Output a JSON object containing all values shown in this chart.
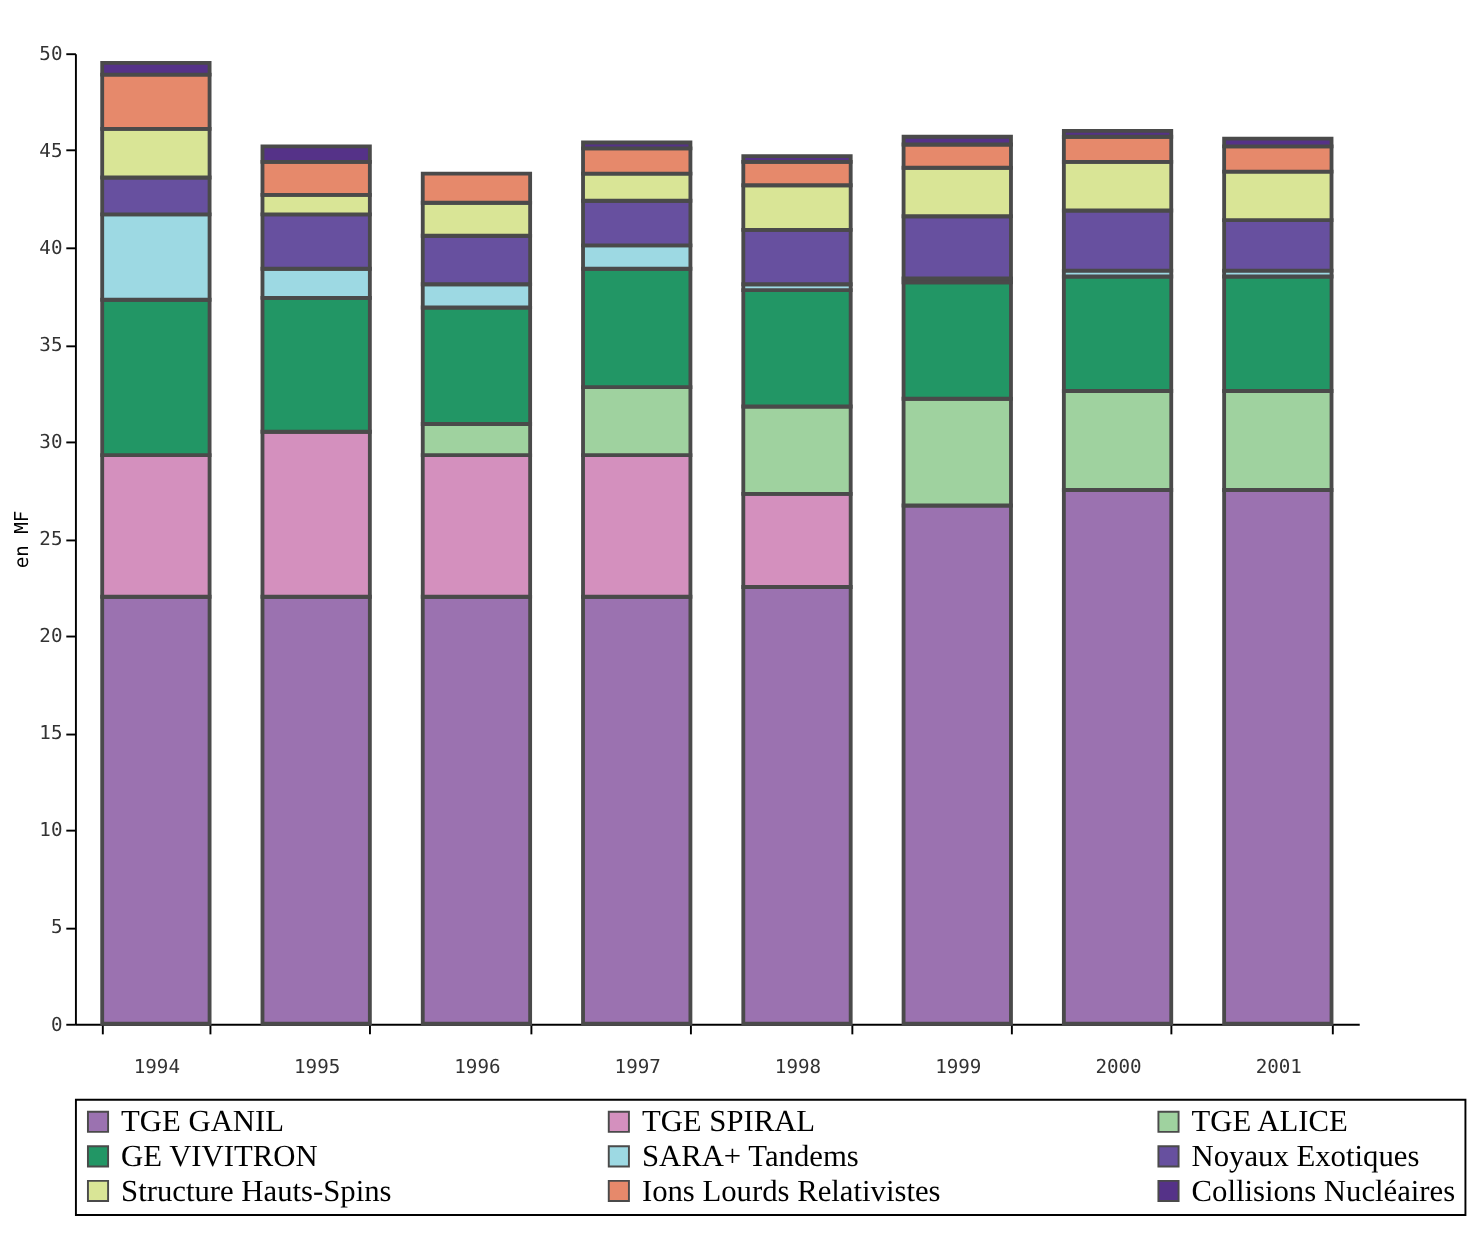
{
  "chart_data": {
    "type": "bar",
    "stacked": true,
    "ylabel": "en MF",
    "categories": [
      "1994",
      "1995",
      "1996",
      "1997",
      "1998",
      "1999",
      "2000",
      "2001"
    ],
    "ylim": [
      0,
      50
    ],
    "yticks": [
      0,
      5,
      10,
      15,
      20,
      25,
      30,
      35,
      40,
      45,
      50
    ],
    "grid": false,
    "legend": "bottom",
    "series": [
      {
        "name": "TGE  GANIL",
        "color": "#9b72b0",
        "values": [
          22.0,
          22.0,
          22.0,
          22.0,
          22.5,
          26.7,
          27.5,
          27.5
        ]
      },
      {
        "name": "TGE SPIRAL",
        "color": "#d490be",
        "values": [
          7.3,
          8.5,
          7.3,
          7.3,
          4.8,
          0,
          0,
          0
        ]
      },
      {
        "name": "TGE ALICE",
        "color": "#9fd29f",
        "values": [
          0,
          0,
          1.6,
          3.5,
          4.5,
          5.5,
          5.1,
          5.1
        ]
      },
      {
        "name": "GE VIVITRON",
        "color": "#229665",
        "values": [
          8.0,
          6.9,
          6.0,
          6.1,
          6.0,
          6.0,
          5.9,
          5.9
        ]
      },
      {
        "name": "SARA+ Tandems",
        "color": "#9dd9e3",
        "values": [
          4.4,
          1.5,
          1.2,
          1.2,
          0.3,
          0.2,
          0.3,
          0.3
        ]
      },
      {
        "name": "Noyaux Exotiques",
        "color": "#67509f",
        "values": [
          1.9,
          2.8,
          2.5,
          2.3,
          2.8,
          3.2,
          3.1,
          2.6
        ]
      },
      {
        "name": "Structure Hauts-Spins",
        "color": "#d9e596",
        "values": [
          2.5,
          1.0,
          1.7,
          1.4,
          2.3,
          2.5,
          2.5,
          2.5
        ]
      },
      {
        "name": "Ions Lourds Relativistes",
        "color": "#e6896b",
        "values": [
          2.8,
          1.7,
          1.5,
          1.3,
          1.2,
          1.2,
          1.3,
          1.3
        ]
      },
      {
        "name": "Collisions Nucléaires",
        "color": "#553288",
        "values": [
          0.6,
          0.8,
          0,
          0.3,
          0.3,
          0.4,
          0.3,
          0.4
        ]
      }
    ]
  }
}
